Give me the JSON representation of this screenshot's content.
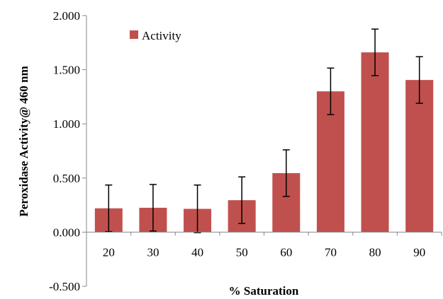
{
  "chart_data": {
    "type": "bar",
    "title": "",
    "xlabel": "% Saturation",
    "ylabel": "Peroxidase Activity@ 460 nm",
    "categories": [
      "20",
      "30",
      "40",
      "50",
      "60",
      "70",
      "80",
      "90"
    ],
    "series": [
      {
        "name": "Activity",
        "values": [
          0.22,
          0.225,
          0.215,
          0.295,
          0.545,
          1.3,
          1.66,
          1.405
        ],
        "error": [
          0.215,
          0.215,
          0.22,
          0.215,
          0.215,
          0.215,
          0.215,
          0.215
        ],
        "color": "#c0504d"
      }
    ],
    "ylim": [
      -0.5,
      2.0
    ],
    "yticks": [
      -0.5,
      0.0,
      0.5,
      1.0,
      1.5,
      2.0
    ],
    "ytick_labels": [
      "-0.500",
      "0.000",
      "0.500",
      "1.000",
      "1.500",
      "2.000"
    ],
    "grid": false,
    "legend": "top-left"
  }
}
